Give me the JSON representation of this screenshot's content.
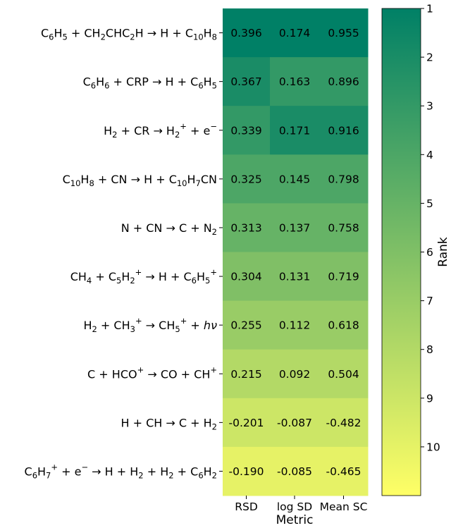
{
  "chart_data": {
    "type": "heatmap",
    "columns": [
      "RSD",
      "log SD",
      "Mean SC"
    ],
    "xlabel": "Metric",
    "rows": [
      {
        "parts": [
          [
            "C",
            ""
          ],
          [
            "6",
            "sub"
          ],
          [
            "H",
            ""
          ],
          [
            "5",
            "sub"
          ],
          [
            " + CH",
            ""
          ],
          [
            "2",
            "sub"
          ],
          [
            "CHC",
            ""
          ],
          [
            "2",
            "sub"
          ],
          [
            "H → H + C",
            ""
          ],
          [
            "10",
            "sub"
          ],
          [
            "H",
            ""
          ],
          [
            "8",
            "sub"
          ]
        ],
        "values": [
          0.396,
          0.174,
          0.955
        ],
        "ranks": [
          1,
          1,
          1
        ]
      },
      {
        "parts": [
          [
            "C",
            ""
          ],
          [
            "6",
            "sub"
          ],
          [
            "H",
            ""
          ],
          [
            "6",
            "sub"
          ],
          [
            " + CRP → H + C",
            ""
          ],
          [
            "6",
            "sub"
          ],
          [
            "H",
            ""
          ],
          [
            "5",
            "sub"
          ]
        ],
        "values": [
          0.367,
          0.163,
          0.896
        ],
        "ranks": [
          2,
          3,
          3
        ]
      },
      {
        "parts": [
          [
            "H",
            ""
          ],
          [
            "2",
            "sub"
          ],
          [
            " + CR → H",
            ""
          ],
          [
            "2",
            "sub"
          ],
          [
            "+",
            "sup"
          ],
          [
            " + e",
            ""
          ],
          [
            "−",
            "sup"
          ]
        ],
        "values": [
          0.339,
          0.171,
          0.916
        ],
        "ranks": [
          3,
          2,
          2
        ]
      },
      {
        "parts": [
          [
            "C",
            ""
          ],
          [
            "10",
            "sub"
          ],
          [
            "H",
            ""
          ],
          [
            "8",
            "sub"
          ],
          [
            " + CN → H + C",
            ""
          ],
          [
            "10",
            "sub"
          ],
          [
            "H",
            ""
          ],
          [
            "7",
            "sub"
          ],
          [
            "CN",
            ""
          ]
        ],
        "values": [
          0.325,
          0.145,
          0.798
        ],
        "ranks": [
          4,
          4,
          4
        ]
      },
      {
        "parts": [
          [
            "N + CN → C + N",
            ""
          ],
          [
            "2",
            "sub"
          ]
        ],
        "values": [
          0.313,
          0.137,
          0.758
        ],
        "ranks": [
          5,
          5,
          5
        ]
      },
      {
        "parts": [
          [
            "CH",
            ""
          ],
          [
            "4",
            "sub"
          ],
          [
            " + C",
            ""
          ],
          [
            "5",
            "sub"
          ],
          [
            "H",
            ""
          ],
          [
            "2",
            "sub"
          ],
          [
            "+",
            "sup"
          ],
          [
            " → H + C",
            ""
          ],
          [
            "6",
            "sub"
          ],
          [
            "H",
            ""
          ],
          [
            "5",
            "sub"
          ],
          [
            "+",
            "sup"
          ]
        ],
        "values": [
          0.304,
          0.131,
          0.719
        ],
        "ranks": [
          6,
          6,
          6
        ]
      },
      {
        "parts": [
          [
            "H",
            ""
          ],
          [
            "2",
            "sub"
          ],
          [
            " + CH",
            ""
          ],
          [
            "3",
            "sub"
          ],
          [
            "+",
            "sup"
          ],
          [
            " → CH",
            ""
          ],
          [
            "5",
            "sub"
          ],
          [
            "+",
            "sup"
          ],
          [
            " + ",
            ""
          ],
          [
            "hν",
            "it"
          ]
        ],
        "values": [
          0.255,
          0.112,
          0.618
        ],
        "ranks": [
          7,
          7,
          7
        ]
      },
      {
        "parts": [
          [
            "C + HCO",
            ""
          ],
          [
            "+",
            "sup"
          ],
          [
            " → CO + CH",
            ""
          ],
          [
            "+",
            "sup"
          ]
        ],
        "values": [
          0.215,
          0.092,
          0.504
        ],
        "ranks": [
          8,
          8,
          8
        ]
      },
      {
        "parts": [
          [
            "H + CH → C + H",
            ""
          ],
          [
            "2",
            "sub"
          ]
        ],
        "values": [
          -0.201,
          -0.087,
          -0.482
        ],
        "ranks": [
          9,
          9,
          9
        ]
      },
      {
        "parts": [
          [
            "C",
            ""
          ],
          [
            "6",
            "sub"
          ],
          [
            "H",
            ""
          ],
          [
            "7",
            "sub"
          ],
          [
            "+",
            "sup"
          ],
          [
            " + e",
            ""
          ],
          [
            "−",
            "sup"
          ],
          [
            " → H + H",
            ""
          ],
          [
            "2",
            "sub"
          ],
          [
            " + H",
            ""
          ],
          [
            "2",
            "sub"
          ],
          [
            " + C",
            ""
          ],
          [
            "6",
            "sub"
          ],
          [
            "H",
            ""
          ],
          [
            "2",
            "sub"
          ]
        ],
        "values": [
          -0.19,
          -0.085,
          -0.465
        ],
        "ranks": [
          10,
          10,
          10
        ]
      }
    ],
    "colorbar": {
      "label": "Rank",
      "range": [
        1,
        11
      ],
      "ticks": [
        1,
        2,
        3,
        4,
        5,
        6,
        7,
        8,
        9,
        10
      ],
      "colormap": "summer_r",
      "color_low_rank": "#008066",
      "color_high_rank": "#ffff66"
    }
  }
}
